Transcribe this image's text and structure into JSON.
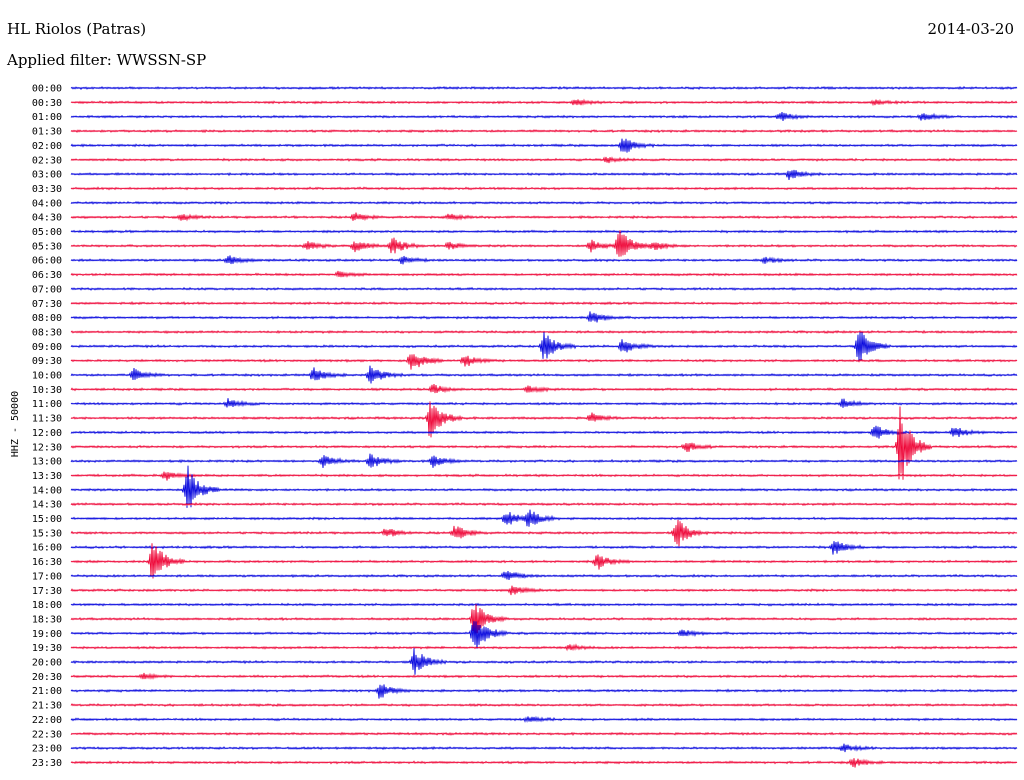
{
  "header": {
    "station": "HL Riolos (Patras)",
    "date": "2014-03-20",
    "filter_label": "Applied filter:",
    "filter_value": "WWSSN-SP"
  },
  "colors": {
    "blue_trace": "#0000dd",
    "red_trace": "#ee0033",
    "background": "#ffffff",
    "text": "#000000"
  },
  "chart_data": {
    "type": "line",
    "title": "HL Riolos (Patras)",
    "channel_label": "HHZ - 50000",
    "row_labels": [
      "00:00",
      "00:30",
      "01:00",
      "01:30",
      "02:00",
      "02:30",
      "03:00",
      "03:30",
      "04:00",
      "04:30",
      "05:00",
      "05:30",
      "06:00",
      "06:30",
      "07:00",
      "07:30",
      "08:00",
      "08:30",
      "09:00",
      "09:30",
      "10:00",
      "10:30",
      "11:00",
      "11:30",
      "12:00",
      "12:30",
      "13:00",
      "13:30",
      "14:00",
      "14:30",
      "15:00",
      "15:30",
      "16:00",
      "16:30",
      "17:00",
      "17:30",
      "18:00",
      "18:30",
      "19:00",
      "19:30",
      "20:00",
      "20:30",
      "21:00",
      "21:30",
      "22:00",
      "22:30",
      "23:00",
      "23:30"
    ],
    "color_cycle": [
      "blue",
      "red"
    ],
    "events": [
      {
        "row": 1,
        "minute": 16.0,
        "amp": 3
      },
      {
        "row": 1,
        "minute": 25.5,
        "amp": 2
      },
      {
        "row": 2,
        "minute": 22.5,
        "amp": 5
      },
      {
        "row": 2,
        "minute": 27.0,
        "amp": 5
      },
      {
        "row": 4,
        "minute": 17.5,
        "amp": 10
      },
      {
        "row": 5,
        "minute": 17.0,
        "amp": 3
      },
      {
        "row": 6,
        "minute": 22.8,
        "amp": 6
      },
      {
        "row": 9,
        "minute": 3.5,
        "amp": 3
      },
      {
        "row": 9,
        "minute": 9.0,
        "amp": 4
      },
      {
        "row": 9,
        "minute": 12.0,
        "amp": 3
      },
      {
        "row": 11,
        "minute": 7.5,
        "amp": 5
      },
      {
        "row": 11,
        "minute": 9.0,
        "amp": 6
      },
      {
        "row": 11,
        "minute": 10.2,
        "amp": 9
      },
      {
        "row": 11,
        "minute": 12.0,
        "amp": 4
      },
      {
        "row": 11,
        "minute": 16.5,
        "amp": 6
      },
      {
        "row": 11,
        "minute": 17.4,
        "amp": 18
      },
      {
        "row": 11,
        "minute": 18.5,
        "amp": 5
      },
      {
        "row": 12,
        "minute": 5.0,
        "amp": 5
      },
      {
        "row": 12,
        "minute": 10.5,
        "amp": 4
      },
      {
        "row": 12,
        "minute": 22.0,
        "amp": 3
      },
      {
        "row": 13,
        "minute": 8.5,
        "amp": 3
      },
      {
        "row": 16,
        "minute": 16.5,
        "amp": 7
      },
      {
        "row": 18,
        "minute": 15.0,
        "amp": 16
      },
      {
        "row": 18,
        "minute": 17.5,
        "amp": 8
      },
      {
        "row": 18,
        "minute": 25.0,
        "amp": 18
      },
      {
        "row": 19,
        "minute": 10.8,
        "amp": 12
      },
      {
        "row": 19,
        "minute": 12.5,
        "amp": 6
      },
      {
        "row": 20,
        "minute": 2.0,
        "amp": 6
      },
      {
        "row": 20,
        "minute": 7.7,
        "amp": 8
      },
      {
        "row": 20,
        "minute": 9.5,
        "amp": 10
      },
      {
        "row": 21,
        "minute": 11.5,
        "amp": 5
      },
      {
        "row": 21,
        "minute": 14.5,
        "amp": 4
      },
      {
        "row": 22,
        "minute": 5.0,
        "amp": 5
      },
      {
        "row": 22,
        "minute": 24.5,
        "amp": 5
      },
      {
        "row": 23,
        "minute": 11.4,
        "amp": 24
      },
      {
        "row": 23,
        "minute": 16.5,
        "amp": 5
      },
      {
        "row": 24,
        "minute": 25.5,
        "amp": 8
      },
      {
        "row": 24,
        "minute": 28.0,
        "amp": 6
      },
      {
        "row": 25,
        "minute": 19.5,
        "amp": 6
      },
      {
        "row": 25,
        "minute": 26.3,
        "amp": 42
      },
      {
        "row": 26,
        "minute": 8.0,
        "amp": 6
      },
      {
        "row": 26,
        "minute": 9.5,
        "amp": 8
      },
      {
        "row": 26,
        "minute": 11.5,
        "amp": 6
      },
      {
        "row": 27,
        "minute": 3.0,
        "amp": 5
      },
      {
        "row": 28,
        "minute": 3.7,
        "amp": 24
      },
      {
        "row": 30,
        "minute": 13.8,
        "amp": 8
      },
      {
        "row": 30,
        "minute": 14.5,
        "amp": 10
      },
      {
        "row": 31,
        "minute": 10.0,
        "amp": 5
      },
      {
        "row": 31,
        "minute": 12.2,
        "amp": 8
      },
      {
        "row": 31,
        "minute": 19.2,
        "amp": 16
      },
      {
        "row": 32,
        "minute": 24.2,
        "amp": 8
      },
      {
        "row": 33,
        "minute": 2.6,
        "amp": 24
      },
      {
        "row": 33,
        "minute": 16.7,
        "amp": 8
      },
      {
        "row": 34,
        "minute": 13.8,
        "amp": 6
      },
      {
        "row": 35,
        "minute": 14.0,
        "amp": 5
      },
      {
        "row": 37,
        "minute": 12.8,
        "amp": 18
      },
      {
        "row": 38,
        "minute": 12.8,
        "amp": 22
      },
      {
        "row": 38,
        "minute": 19.4,
        "amp": 4
      },
      {
        "row": 39,
        "minute": 15.8,
        "amp": 3
      },
      {
        "row": 40,
        "minute": 10.9,
        "amp": 14
      },
      {
        "row": 41,
        "minute": 2.3,
        "amp": 3
      },
      {
        "row": 42,
        "minute": 9.8,
        "amp": 8
      },
      {
        "row": 44,
        "minute": 14.5,
        "amp": 3
      },
      {
        "row": 46,
        "minute": 24.5,
        "amp": 4
      },
      {
        "row": 47,
        "minute": 24.8,
        "amp": 5
      }
    ]
  }
}
